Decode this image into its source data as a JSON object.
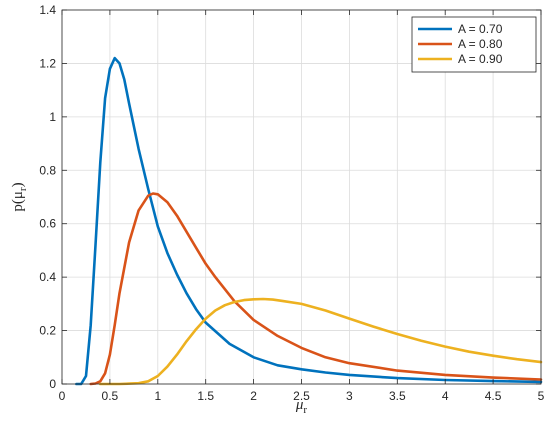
{
  "chart_data": {
    "type": "line",
    "xlabel": "μ",
    "xlabel_sub": "r",
    "ylabel": "p(μ",
    "ylabel_sub": "r",
    "ylabel_close": ")",
    "xlim": [
      0,
      5
    ],
    "ylim": [
      0,
      1.4
    ],
    "xticks": [
      0,
      0.5,
      1,
      1.5,
      2,
      2.5,
      3,
      3.5,
      4,
      4.5,
      5
    ],
    "yticks": [
      0,
      0.2,
      0.4,
      0.6,
      0.8,
      1,
      1.2,
      1.4
    ],
    "grid": true,
    "legend_position": "top-right",
    "series": [
      {
        "name": "A = 0.70",
        "color": "#0072BD",
        "x": [
          0.15,
          0.2,
          0.25,
          0.3,
          0.35,
          0.4,
          0.45,
          0.5,
          0.55,
          0.6,
          0.65,
          0.7,
          0.8,
          0.9,
          1.0,
          1.1,
          1.2,
          1.3,
          1.4,
          1.5,
          1.75,
          2.0,
          2.25,
          2.5,
          2.75,
          3.0,
          3.5,
          4.0,
          4.5,
          5.0
        ],
        "y": [
          0,
          0.0,
          0.03,
          0.22,
          0.52,
          0.83,
          1.07,
          1.18,
          1.22,
          1.2,
          1.14,
          1.05,
          0.88,
          0.73,
          0.59,
          0.49,
          0.41,
          0.34,
          0.28,
          0.23,
          0.15,
          0.1,
          0.07,
          0.055,
          0.043,
          0.034,
          0.022,
          0.015,
          0.011,
          0.008
        ]
      },
      {
        "name": "A = 0.80",
        "color": "#D95319",
        "x": [
          0.3,
          0.35,
          0.4,
          0.45,
          0.5,
          0.55,
          0.6,
          0.7,
          0.8,
          0.9,
          0.95,
          1.0,
          1.1,
          1.2,
          1.3,
          1.4,
          1.5,
          1.6,
          1.8,
          2.0,
          2.25,
          2.5,
          2.75,
          3.0,
          3.5,
          4.0,
          4.5,
          5.0
        ],
        "y": [
          0,
          0.002,
          0.01,
          0.04,
          0.11,
          0.22,
          0.34,
          0.53,
          0.65,
          0.705,
          0.713,
          0.71,
          0.68,
          0.63,
          0.57,
          0.51,
          0.45,
          0.4,
          0.31,
          0.24,
          0.18,
          0.135,
          0.1,
          0.078,
          0.05,
          0.034,
          0.024,
          0.017
        ]
      },
      {
        "name": "A = 0.90",
        "color": "#EDB120",
        "x": [
          0.4,
          0.6,
          0.8,
          0.9,
          1.0,
          1.1,
          1.2,
          1.3,
          1.4,
          1.5,
          1.6,
          1.7,
          1.8,
          1.9,
          2.0,
          2.1,
          2.2,
          2.3,
          2.5,
          2.75,
          3.0,
          3.25,
          3.5,
          3.75,
          4.0,
          4.25,
          4.5,
          4.75,
          5.0
        ],
        "y": [
          0,
          0.0,
          0.003,
          0.01,
          0.03,
          0.065,
          0.11,
          0.16,
          0.205,
          0.245,
          0.275,
          0.295,
          0.307,
          0.314,
          0.317,
          0.318,
          0.316,
          0.311,
          0.3,
          0.275,
          0.245,
          0.215,
          0.187,
          0.162,
          0.14,
          0.121,
          0.106,
          0.093,
          0.082
        ]
      }
    ]
  }
}
